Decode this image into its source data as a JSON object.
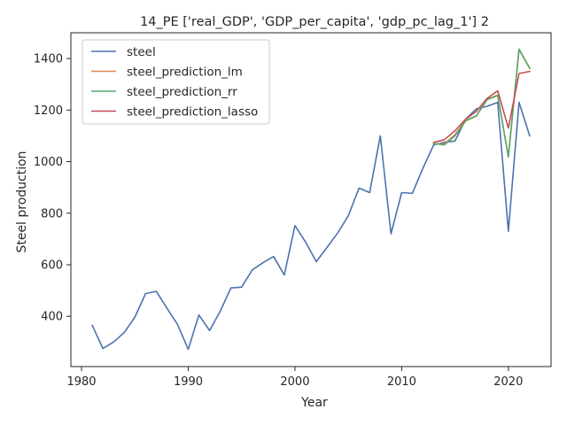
{
  "chart_data": {
    "type": "line",
    "title": "14_PE ['real_GDP', 'GDP_per_capita', 'gdp_pc_lag_1'] 2",
    "xlabel": "Year",
    "ylabel": "Steel production",
    "xlim": [
      1979,
      2024
    ],
    "ylim": [
      205,
      1500
    ],
    "xticks": [
      1980,
      1990,
      2000,
      2010,
      2020
    ],
    "yticks": [
      400,
      600,
      800,
      1000,
      1200,
      1400
    ],
    "grid": false,
    "legend_position": "top-left",
    "series": [
      {
        "name": "steel",
        "color": "#4c72b0",
        "x": [
          1981,
          1982,
          1983,
          1984,
          1985,
          1986,
          1987,
          1988,
          1989,
          1990,
          1991,
          1992,
          1993,
          1994,
          1995,
          1996,
          1997,
          1998,
          1999,
          2000,
          2001,
          2002,
          2003,
          2004,
          2005,
          2006,
          2007,
          2008,
          2009,
          2010,
          2011,
          2012,
          2013,
          2014,
          2015,
          2016,
          2017,
          2018,
          2019,
          2020,
          2021,
          2022
        ],
        "y": [
          365,
          275,
          300,
          337,
          397,
          488,
          497,
          432,
          368,
          272,
          405,
          345,
          420,
          510,
          513,
          580,
          608,
          632,
          560,
          752,
          688,
          612,
          667,
          723,
          790,
          897,
          880,
          1100,
          720,
          880,
          877,
          975,
          1065,
          1075,
          1080,
          1165,
          1205,
          1215,
          1230,
          730,
          1230,
          1100
        ]
      },
      {
        "name": "steel_prediction_lm",
        "color": "#dd8452",
        "x": [
          2013,
          2014,
          2015,
          2016,
          2017,
          2018,
          2019,
          2020,
          2021,
          2022
        ],
        "y": [
          1070,
          1068,
          1105,
          1160,
          1178,
          1242,
          1258,
          1020,
          1435,
          1362
        ]
      },
      {
        "name": "steel_prediction_rr",
        "color": "#55a868",
        "x": [
          2013,
          2014,
          2015,
          2016,
          2017,
          2018,
          2019,
          2020,
          2021,
          2022
        ],
        "y": [
          1070,
          1065,
          1100,
          1158,
          1177,
          1240,
          1257,
          1018,
          1437,
          1362
        ]
      },
      {
        "name": "steel_prediction_lasso",
        "color": "#c44e52",
        "x": [
          2013,
          2014,
          2015,
          2016,
          2017,
          2018,
          2019,
          2020,
          2021,
          2022
        ],
        "y": [
          1075,
          1085,
          1120,
          1165,
          1195,
          1245,
          1275,
          1130,
          1342,
          1350
        ]
      }
    ]
  }
}
